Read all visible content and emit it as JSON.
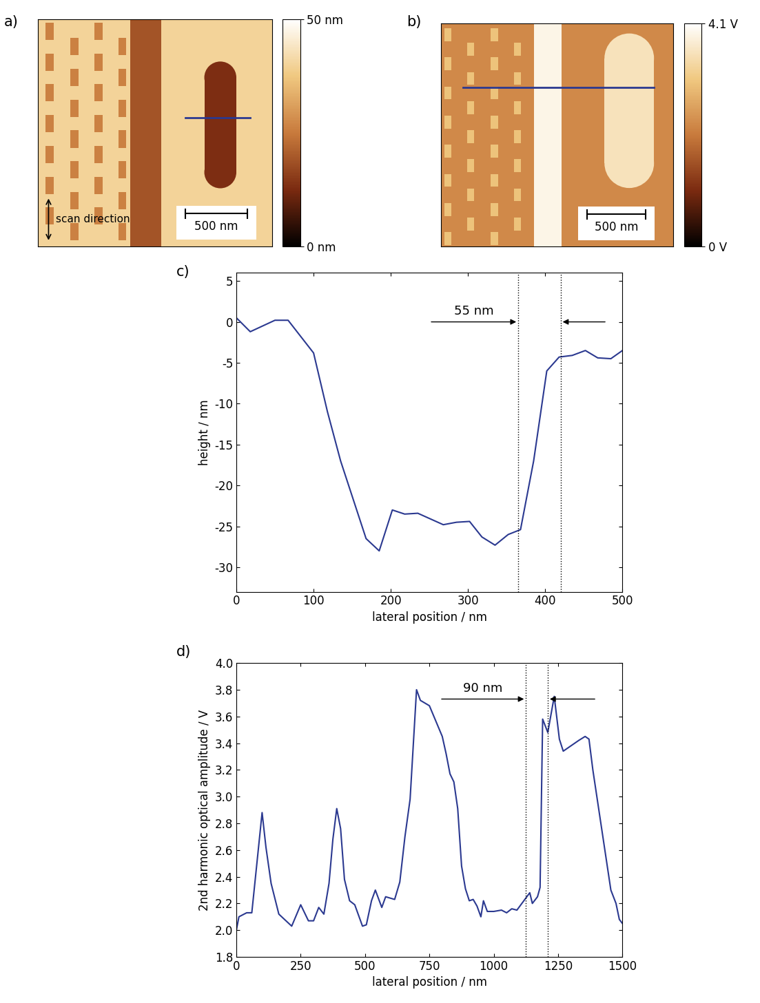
{
  "chart_data": [
    {
      "type": "image",
      "panel_label": "a)",
      "xlim": [
        0,
        1900
      ],
      "ylim": [
        1850,
        0
      ],
      "tick_labels": false,
      "background": 40,
      "features": [
        {
          "shape": "rect",
          "x": [
            750,
            1000
          ],
          "y": [
            0,
            1850
          ],
          "value": 19
        },
        {
          "shape": "stadium",
          "x": [
            1350,
            1610
          ],
          "y": [
            345,
            1375
          ],
          "value": 13
        }
      ],
      "dots": {
        "value": 26,
        "width": 65,
        "height": 140,
        "columns": [
          {
            "x": 95,
            "y": [
              100,
              350,
              600,
              850,
              1100,
              1350,
              1600
            ]
          },
          {
            "x": 295,
            "y": [
              225,
              475,
              725,
              975,
              1225,
              1475,
              1725
            ]
          },
          {
            "x": 490,
            "y": [
              100,
              350,
              600,
              850,
              1100,
              1350,
              1600
            ]
          },
          {
            "x": 685,
            "y": [
              225,
              475,
              725,
              975,
              1225,
              1475,
              1725
            ]
          }
        ]
      },
      "profile": {
        "x": [
          1195,
          1720
        ],
        "y": 800,
        "color": "#2b3990"
      },
      "scale_bar": {
        "length": 500,
        "label": "500 nm"
      },
      "scan_label": "scan direction",
      "colorbar": {
        "lim": [
          0,
          50
        ],
        "ticks": [
          {
            "value": 0,
            "label": "0 nm"
          },
          {
            "value": 50,
            "label": "50 nm"
          }
        ]
      }
    },
    {
      "type": "image",
      "panel_label": "b)",
      "xlim": [
        0,
        1995
      ],
      "ylim": [
        1920,
        0
      ],
      "tick_labels": false,
      "background": 2.25,
      "features": [
        {
          "shape": "rect",
          "x": [
            797,
            1033
          ],
          "y": [
            0,
            1920
          ],
          "value": 3.9
        },
        {
          "shape": "stadium",
          "x": [
            1404,
            1829
          ],
          "y": [
            89,
            1416
          ],
          "value": 3.55
        }
      ],
      "dots": {
        "value": 3.0,
        "width": 60,
        "height": 110,
        "columns": [
          {
            "x": 60,
            "y": [
              100,
              350,
              600,
              850,
              1100,
              1350,
              1600,
              1850
            ]
          },
          {
            "x": 255,
            "y": [
              225,
              475,
              725,
              975,
              1225,
              1475,
              1725
            ]
          },
          {
            "x": 460,
            "y": [
              100,
              350,
              600,
              850,
              1100,
              1350,
              1600,
              1850
            ]
          },
          {
            "x": 660,
            "y": [
              225,
              475,
              725,
              975,
              1225,
              1475,
              1725
            ]
          }
        ]
      },
      "profile": {
        "x": [
          190,
          1830
        ],
        "y": 550,
        "color": "#2b3990"
      },
      "scale_bar": {
        "length": 500,
        "label": "500 nm"
      },
      "colorbar": {
        "lim": [
          0,
          4.1
        ],
        "ticks": [
          {
            "value": 0,
            "label": "0 V"
          },
          {
            "value": 4.1,
            "label": "4.1 V"
          }
        ]
      }
    },
    {
      "type": "line",
      "panel_label": "c)",
      "x_label": "lateral position / nm",
      "y_label": "height / nm",
      "x": [
        0,
        18,
        50,
        67,
        100,
        118,
        135,
        168,
        185,
        202,
        218,
        235,
        268,
        285,
        302,
        318,
        335,
        352,
        368,
        385,
        402,
        418,
        435,
        452,
        468,
        485,
        500
      ],
      "series": [
        {
          "color": "#2b3990",
          "values": [
            0.5,
            -1.2,
            0.2,
            0.2,
            -3.8,
            -11,
            -17,
            -26.5,
            -28,
            -23,
            -23.5,
            -23.4,
            -24.8,
            -24.5,
            -24.4,
            -26.3,
            -27.3,
            -26,
            -25.4,
            -17,
            -6,
            -4.3,
            -4.1,
            -3.5,
            -4.4,
            -4.5,
            -3.5
          ]
        }
      ],
      "xlim": [
        0,
        500
      ],
      "xticks": [
        0,
        100,
        200,
        300,
        400,
        500
      ],
      "ylim": [
        -33,
        6
      ],
      "yticks": [
        -30,
        -25,
        -20,
        -15,
        -10,
        -5,
        0,
        5
      ],
      "vlines": [
        365,
        420
      ],
      "annotation": {
        "text": "55 nm",
        "y": 0,
        "arrow_tails": [
          250,
          480
        ]
      }
    },
    {
      "type": "line",
      "panel_label": "d)",
      "x_label": "lateral position / nm",
      "y_label": "2nd harmonic optical amplitude / V",
      "x": [
        0,
        10,
        40,
        60,
        100,
        115,
        135,
        165,
        215,
        250,
        280,
        300,
        320,
        340,
        360,
        375,
        390,
        405,
        420,
        440,
        460,
        490,
        505,
        525,
        540,
        565,
        580,
        615,
        635,
        655,
        675,
        700,
        715,
        750,
        800,
        815,
        830,
        845,
        860,
        875,
        890,
        905,
        920,
        935,
        950,
        960,
        975,
        1000,
        1030,
        1050,
        1070,
        1090,
        1140,
        1150,
        1170,
        1180,
        1190,
        1210,
        1235,
        1255,
        1270,
        1330,
        1355,
        1370,
        1385,
        1455,
        1475,
        1488,
        1500
      ],
      "series": [
        {
          "color": "#2b3990",
          "values": [
            2.0,
            2.1,
            2.13,
            2.13,
            2.88,
            2.62,
            2.35,
            2.12,
            2.03,
            2.19,
            2.07,
            2.07,
            2.17,
            2.12,
            2.35,
            2.68,
            2.91,
            2.76,
            2.38,
            2.22,
            2.19,
            2.03,
            2.04,
            2.22,
            2.3,
            2.17,
            2.25,
            2.23,
            2.36,
            2.7,
            2.98,
            3.8,
            3.72,
            3.68,
            3.45,
            3.32,
            3.17,
            3.11,
            2.91,
            2.48,
            2.31,
            2.22,
            2.23,
            2.18,
            2.1,
            2.22,
            2.14,
            2.14,
            2.15,
            2.13,
            2.16,
            2.15,
            2.28,
            2.2,
            2.25,
            2.32,
            3.58,
            3.48,
            3.75,
            3.43,
            3.34,
            3.42,
            3.45,
            3.43,
            3.2,
            2.3,
            2.2,
            2.08,
            2.05
          ]
        }
      ],
      "xlim": [
        0,
        1500
      ],
      "xticks": [
        0,
        250,
        500,
        750,
        1000,
        1250,
        1500
      ],
      "ylim": [
        1.8,
        4.0
      ],
      "yticks": [
        1.8,
        2.0,
        2.2,
        2.4,
        2.6,
        2.8,
        3.0,
        3.2,
        3.4,
        3.6,
        3.8,
        4.0
      ],
      "vlines": [
        1125,
        1210
      ],
      "annotation": {
        "text": "90 nm",
        "y": 3.73,
        "arrow_tails": [
          790,
          1400
        ]
      }
    }
  ]
}
